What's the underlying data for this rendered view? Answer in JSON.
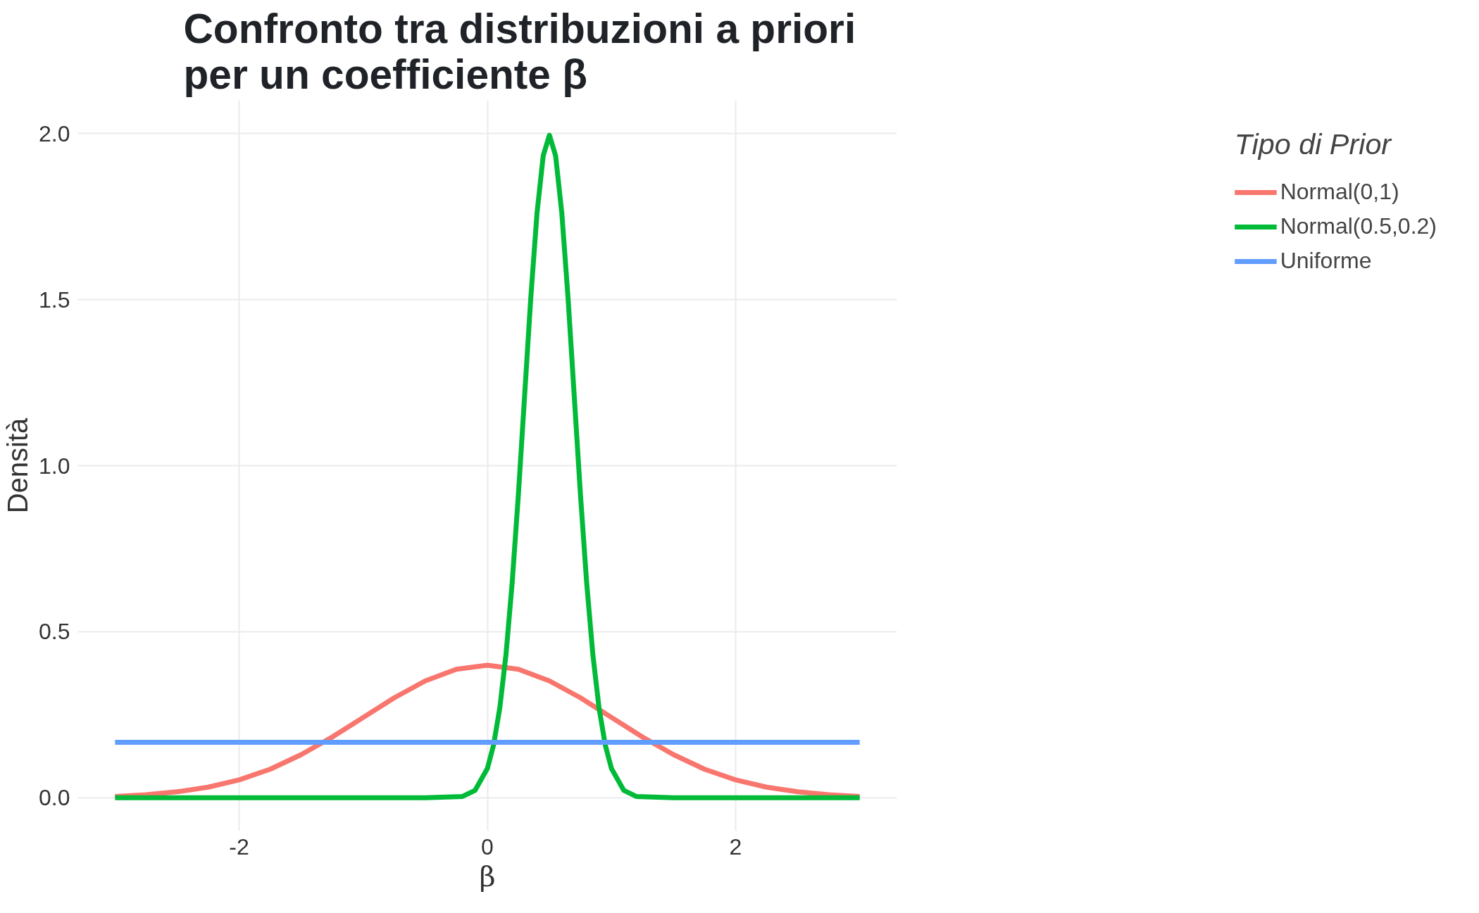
{
  "chart_data": {
    "type": "line",
    "title": "Confronto tra distribuzioni a priori\nper un coefficiente β",
    "xlabel": "β",
    "ylabel": "Densità",
    "legend_title": "Tipo di Prior",
    "xlim": [
      -3.3,
      3.3
    ],
    "ylim": [
      -0.1,
      2.1
    ],
    "xticks": [
      -2,
      0,
      2
    ],
    "yticks": [
      {
        "value": 0,
        "label": "0.0"
      },
      0.5,
      {
        "value": 1,
        "label": "1.0"
      },
      1.5,
      {
        "value": 2,
        "label": "2.0"
      }
    ],
    "grid": true,
    "legend": "right",
    "line_style": "solid",
    "marker": "none",
    "series": [
      {
        "name": "Normal(0,1)",
        "color": "#f8766d",
        "x": [
          -3,
          -2.75,
          -2.5,
          -2.25,
          -2,
          -1.75,
          -1.5,
          -1.25,
          -1,
          -0.75,
          -0.5,
          -0.25,
          0,
          0.25,
          0.5,
          0.75,
          1,
          1.25,
          1.5,
          1.75,
          2,
          2.25,
          2.5,
          2.75,
          3
        ],
        "values": [
          0.004,
          0.009,
          0.018,
          0.032,
          0.054,
          0.086,
          0.13,
          0.183,
          0.242,
          0.301,
          0.352,
          0.387,
          0.399,
          0.387,
          0.352,
          0.301,
          0.242,
          0.183,
          0.13,
          0.086,
          0.054,
          0.032,
          0.018,
          0.009,
          0.004
        ]
      },
      {
        "name": "Normal(0.5,0.2)",
        "color": "#00ba38",
        "x": [
          -3,
          -0.5,
          -0.2,
          -0.1,
          0,
          0.05,
          0.1,
          0.15,
          0.2,
          0.25,
          0.3,
          0.35,
          0.4,
          0.45,
          0.5,
          0.55,
          0.6,
          0.65,
          0.7,
          0.75,
          0.8,
          0.85,
          0.9,
          0.95,
          1.0,
          1.1,
          1.2,
          1.5,
          3
        ],
        "values": [
          0,
          0,
          0.004,
          0.022,
          0.088,
          0.159,
          0.27,
          0.431,
          0.648,
          0.913,
          1.21,
          1.506,
          1.76,
          1.933,
          1.995,
          1.933,
          1.76,
          1.506,
          1.21,
          0.913,
          0.648,
          0.431,
          0.27,
          0.159,
          0.088,
          0.022,
          0.004,
          0,
          0
        ]
      },
      {
        "name": "Uniforme",
        "color": "#619cff",
        "x": [
          -3,
          3
        ],
        "values": [
          0.167,
          0.167
        ]
      }
    ]
  }
}
